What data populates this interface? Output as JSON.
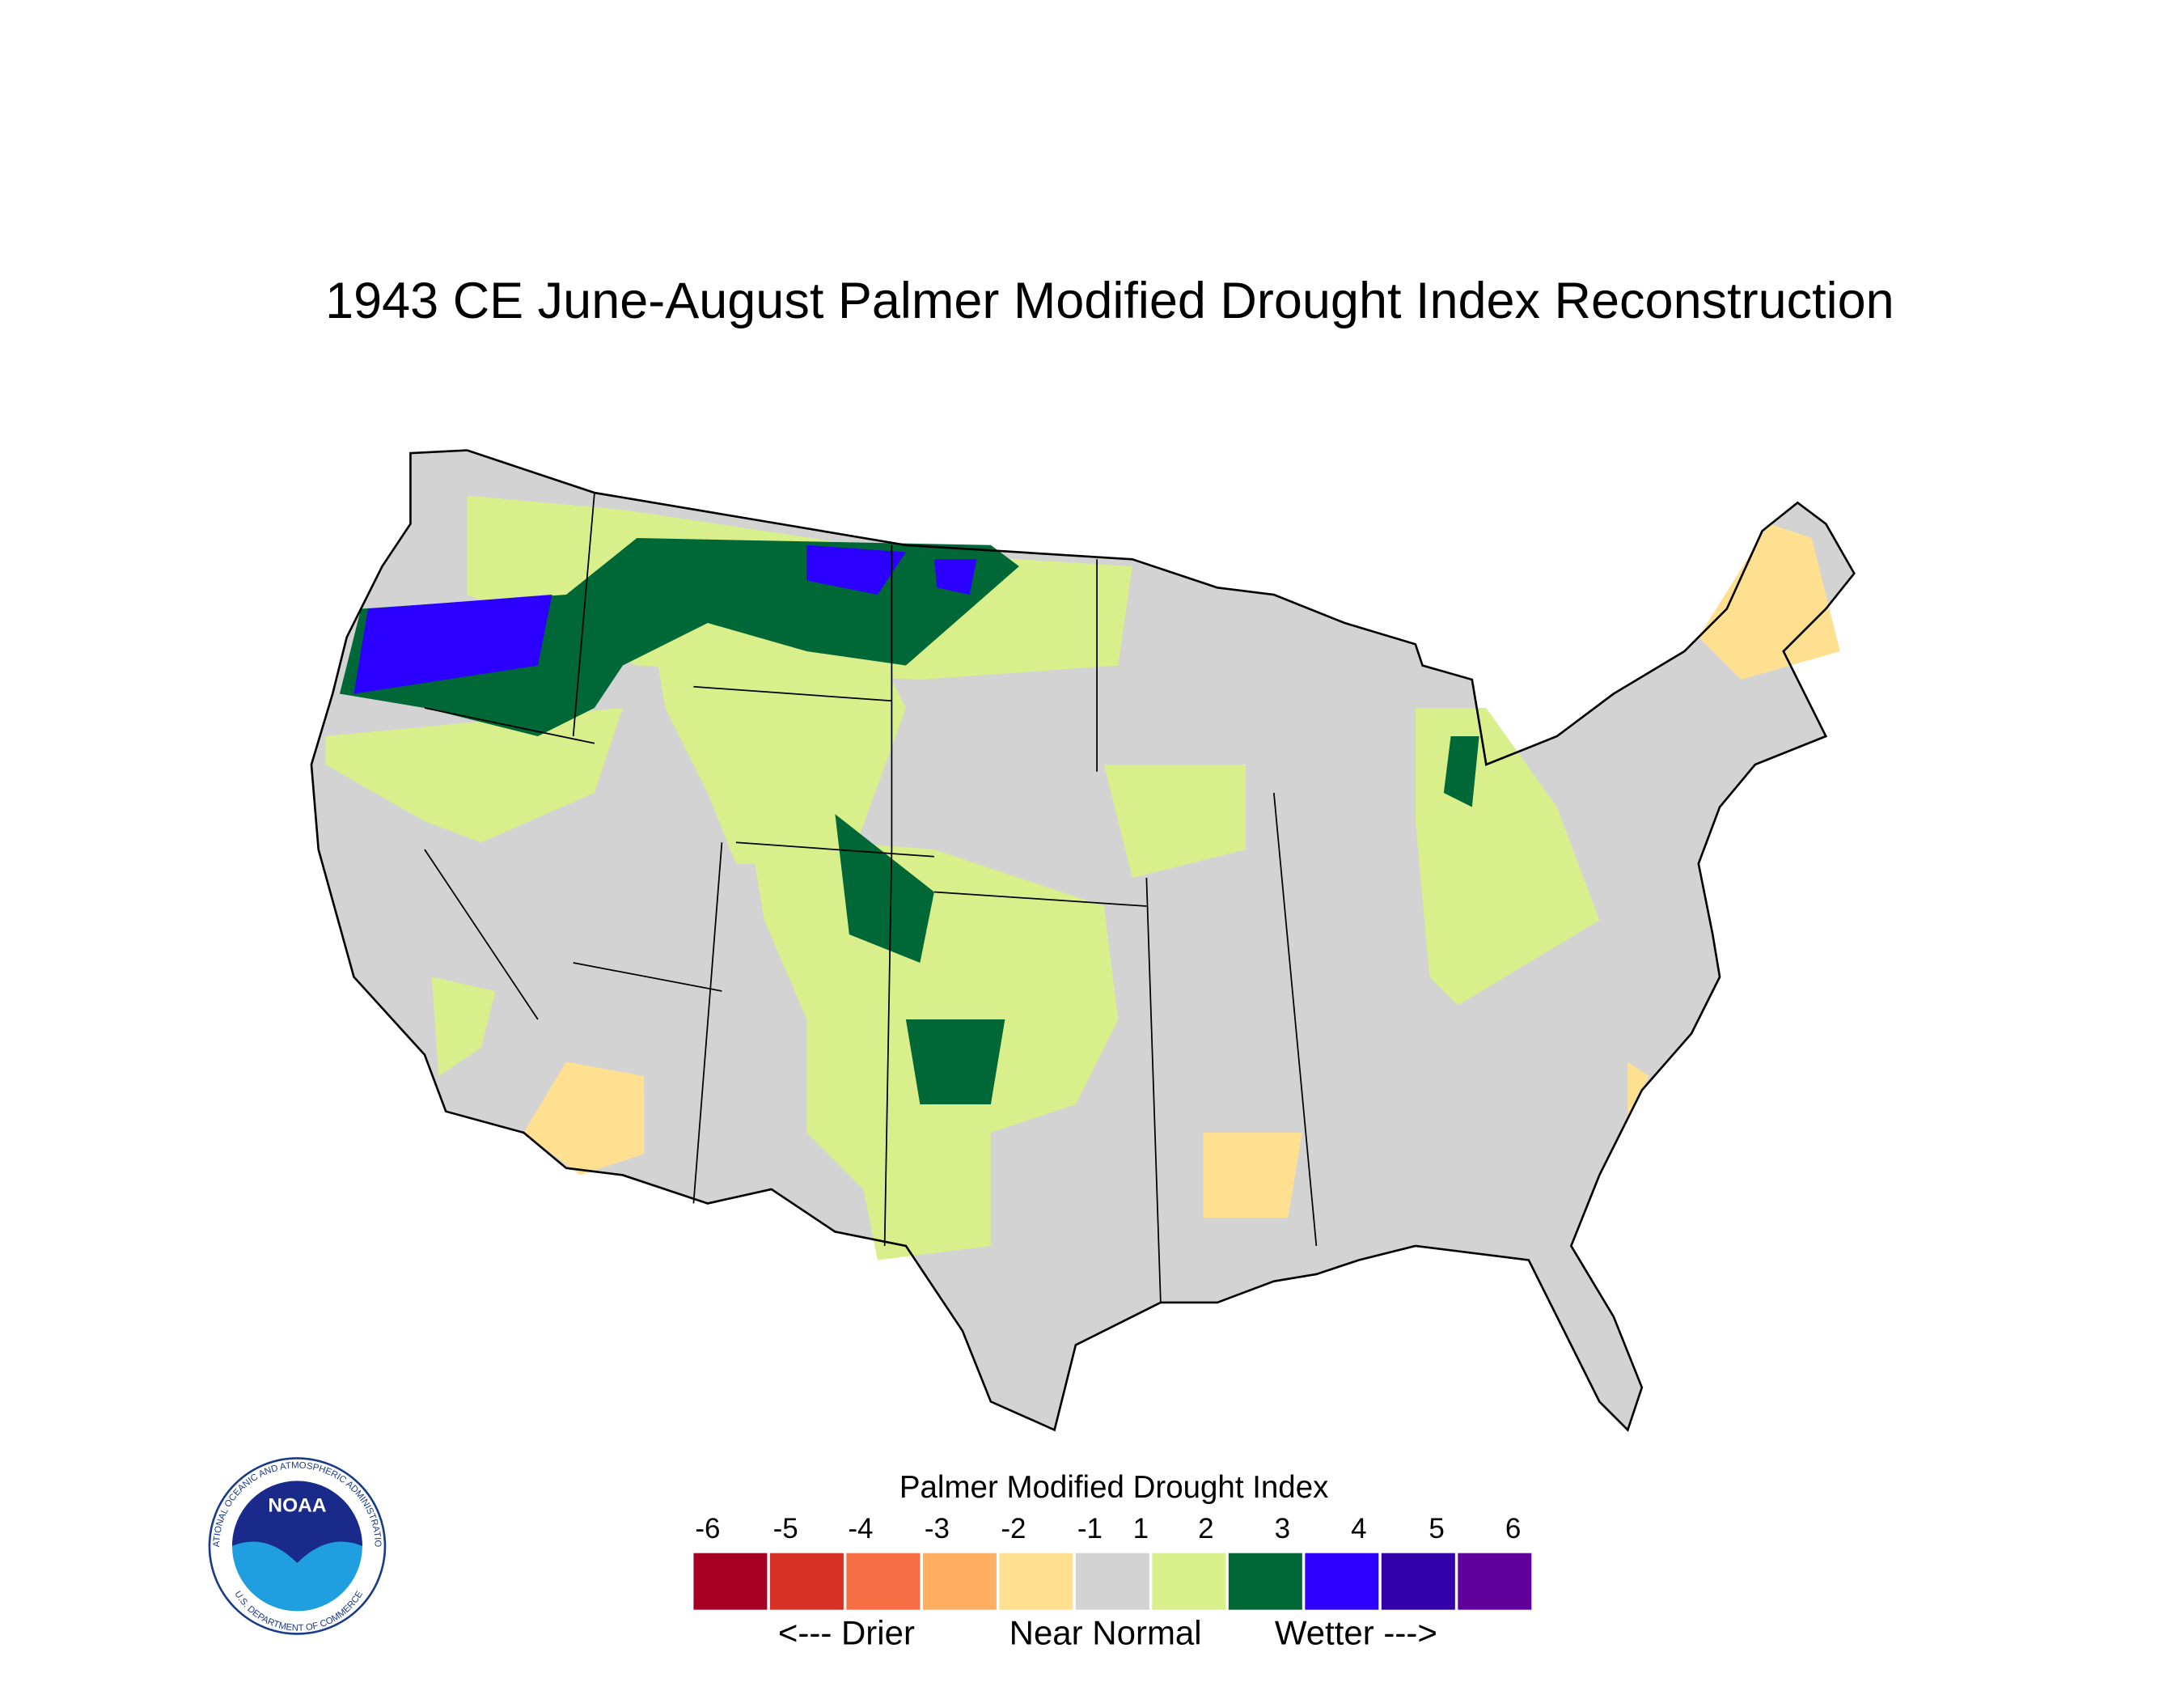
{
  "header": {
    "title": "1943 CE  June-August  Palmer Modified Drought Index Reconstruction"
  },
  "legend": {
    "title": "Palmer Modified Drought Index",
    "ticks": [
      -6,
      -5,
      -4,
      -3,
      -2,
      -1,
      1,
      2,
      3,
      4,
      5,
      6
    ],
    "colors": [
      "#a50021",
      "#d73027",
      "#f46d43",
      "#fdae61",
      "#fee090",
      "#d3d3d3",
      "#d9ef8b",
      "#006837",
      "#2b00ff",
      "#3300aa",
      "#5e0099"
    ],
    "captions": [
      "<--- Drier",
      "Near Normal",
      "Wetter --->"
    ]
  },
  "logo": {
    "name": "NOAA",
    "ring_top": "NATIONAL OCEANIC AND ATMOSPHERIC ADMINISTRATION",
    "ring_bottom": "U.S. DEPARTMENT OF COMMERCE"
  }
}
